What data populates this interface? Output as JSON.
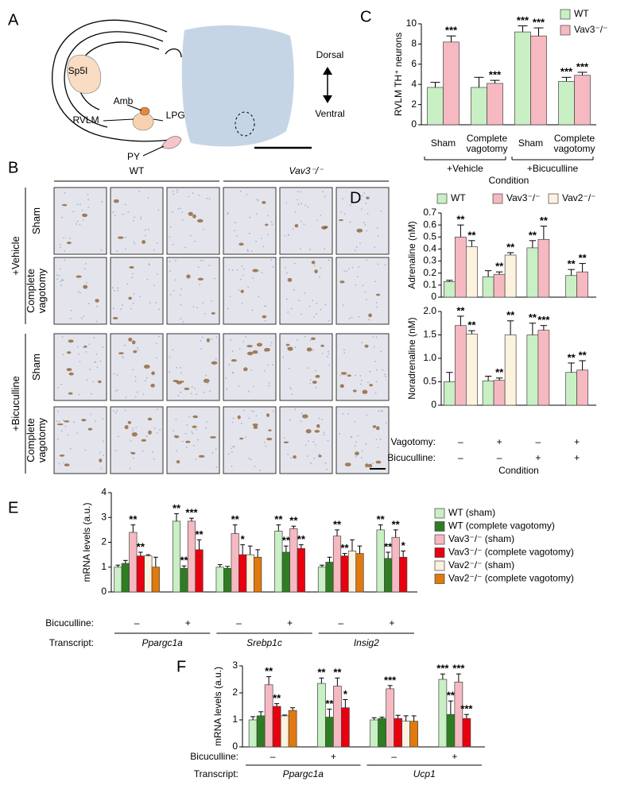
{
  "panel_a": {
    "letter": "A",
    "regions": [
      "Sp5I",
      "Amb",
      "RVLM",
      "LPGi",
      "PY"
    ],
    "orientation": [
      "Dorsal",
      "Ventral"
    ]
  },
  "panel_b": {
    "letter": "B",
    "genotypes": [
      "WT",
      "Vav3⁻/⁻"
    ],
    "treatments": [
      "+Vehicle",
      "+Bicuculline"
    ],
    "rows": [
      "Sham",
      "Complete vagotomy",
      "Sham",
      "Complete vagotomy"
    ]
  },
  "chart_data": [
    {
      "type": "bar",
      "letter": "C",
      "ylabel": "RVLM TH⁺ neurons",
      "xlabel": "Condition",
      "categories": [
        "Sham",
        "Complete vagotomy",
        "Sham",
        "Complete vagotomy"
      ],
      "groups": [
        "+Vehicle",
        "+Bicuculline"
      ],
      "ylim": [
        0,
        10
      ],
      "yticks": [
        0,
        2,
        4,
        6,
        8,
        10
      ],
      "legend": "upper right",
      "series": [
        {
          "name": "WT",
          "color": "#c9efc4",
          "values": [
            3.7,
            3.7,
            9.2,
            4.3
          ],
          "errors": [
            0.5,
            1.0,
            0.6,
            0.4
          ],
          "stars": [
            null,
            null,
            "***",
            "***"
          ],
          "star_colors": [
            null,
            null,
            "#000000",
            "#3f8f1f"
          ]
        },
        {
          "name": "Vav3⁻/⁻",
          "color": "#f6b9c1",
          "values": [
            8.2,
            4.1,
            8.8,
            4.9
          ],
          "errors": [
            0.6,
            0.3,
            0.8,
            0.3
          ],
          "stars": [
            "***",
            "***",
            "***",
            "***"
          ],
          "star_colors": [
            "#000000",
            "#e00000",
            "#000000",
            "#e00000"
          ]
        }
      ]
    },
    {
      "type": "bar",
      "letter": "D",
      "ylabel": "Adrenaline (nM)",
      "ylim": [
        0,
        0.7
      ],
      "yticks": [
        0,
        0.1,
        0.2,
        0.3,
        0.4,
        0.5,
        0.6,
        0.7
      ],
      "legend": "top",
      "series": [
        {
          "name": "WT",
          "color": "#c9efc4",
          "values": [
            0.13,
            0.17,
            0.41,
            0.18
          ],
          "errors": [
            0.01,
            0.05,
            0.06,
            0.05
          ],
          "stars": [
            null,
            null,
            "**",
            "**"
          ],
          "star_colors": [
            null,
            null,
            "#000000",
            "#3f8f1f"
          ]
        },
        {
          "name": "Vav3⁻/⁻",
          "color": "#f6b9c1",
          "values": [
            0.5,
            0.19,
            0.48,
            0.21
          ],
          "errors": [
            0.1,
            0.02,
            0.11,
            0.07
          ],
          "stars": [
            "**",
            "**",
            "**",
            "**"
          ],
          "star_colors": [
            "#000000",
            "#e00000",
            "#000000",
            "#e00000"
          ]
        },
        {
          "name": "Vav2⁻/⁻",
          "color": "#fdf2dd",
          "values": [
            0.42,
            0.35,
            null,
            null
          ],
          "errors": [
            0.05,
            0.02,
            null,
            null
          ],
          "stars": [
            "**",
            "**",
            null,
            null
          ],
          "star_colors": [
            "#000000",
            "#000000",
            null,
            null
          ]
        }
      ]
    },
    {
      "type": "bar",
      "ylabel": "Noradrenaline (nM)",
      "xlabel": "Condition",
      "ylim": [
        0,
        2
      ],
      "yticks": [
        0,
        0.5,
        {
          "value": 1,
          "label": "1.0"
        },
        1.5,
        {
          "value": 2,
          "label": "2.0"
        }
      ],
      "xrows": [
        {
          "label": "Vagotomy:",
          "values": [
            "–",
            "+",
            "–",
            "+"
          ]
        },
        {
          "label": "Bicuculline:",
          "values": [
            "–",
            "–",
            "+",
            "+"
          ]
        }
      ],
      "series": [
        {
          "color": "#c9efc4",
          "values": [
            0.5,
            0.52,
            1.5,
            0.7
          ],
          "errors": [
            0.2,
            0.1,
            0.25,
            0.2
          ],
          "stars": [
            null,
            null,
            "**",
            "**"
          ],
          "star_colors": [
            null,
            null,
            "#000000",
            "#3f8f1f"
          ]
        },
        {
          "color": "#f6b9c1",
          "values": [
            1.7,
            0.53,
            1.6,
            0.75
          ],
          "errors": [
            0.2,
            0.05,
            0.1,
            0.2
          ],
          "stars": [
            "**",
            "**",
            "***",
            "**"
          ],
          "star_colors": [
            "#000000",
            "#e00000",
            "#000000",
            "#e00000"
          ]
        },
        {
          "color": "#fdf2dd",
          "values": [
            1.52,
            1.5,
            null,
            null
          ],
          "errors": [
            0.07,
            0.3,
            null,
            null
          ],
          "stars": [
            "**",
            "**",
            null,
            null
          ],
          "star_colors": [
            "#000000",
            "#000000",
            null,
            null
          ]
        }
      ]
    },
    {
      "type": "bar",
      "letter": "E",
      "ylabel": "mRNA levels (a.u.)",
      "ylim": [
        0,
        4
      ],
      "yticks": [
        0,
        1,
        2,
        3,
        4
      ],
      "legend": "right",
      "xrows": [
        {
          "label": "Bicuculline:",
          "values": [
            "–",
            "+",
            "–",
            "+",
            "–",
            "+"
          ]
        }
      ],
      "transcripts": {
        "label": "Transcript:",
        "names": [
          "Ppargc1a",
          "Srebp1c",
          "Insig2"
        ]
      },
      "series": [
        {
          "name": "WT (sham)",
          "color": "#c9efc4",
          "values": [
            1.0,
            2.85,
            1.0,
            2.45,
            1.0,
            2.5
          ],
          "errors": [
            0.08,
            0.3,
            0.1,
            0.25,
            0.08,
            0.2
          ],
          "stars": [
            null,
            "**",
            null,
            "**",
            null,
            "**"
          ],
          "star_colors": [
            null,
            "#000000",
            null,
            "#000000",
            null,
            "#000000"
          ]
        },
        {
          "name": "WT (complete vagotomy)",
          "color": "#2f7d22",
          "values": [
            1.15,
            0.95,
            0.95,
            1.6,
            1.2,
            1.35
          ],
          "errors": [
            0.12,
            0.1,
            0.08,
            0.25,
            0.2,
            0.25
          ],
          "stars": [
            null,
            "**",
            null,
            "**",
            null,
            "**"
          ],
          "star_colors": [
            null,
            "#3f8f1f",
            null,
            "#3f8f1f",
            null,
            "#3f8f1f"
          ]
        },
        {
          "name": "Vav3⁻/⁻ (sham)",
          "color": "#f6b9c1",
          "values": [
            2.4,
            2.85,
            2.35,
            2.55,
            2.25,
            2.2
          ],
          "errors": [
            0.3,
            0.12,
            0.35,
            0.1,
            0.25,
            0.3
          ],
          "stars": [
            "**",
            "***",
            "**",
            "**",
            "**",
            "**"
          ],
          "star_colors": [
            "#000000",
            "#000000",
            "#000000",
            "#000000",
            "#000000",
            "#000000"
          ]
        },
        {
          "name": "Vav3⁻/⁻ (complete vagotomy)",
          "color": "#e8000e",
          "values": [
            1.45,
            1.7,
            1.5,
            1.75,
            1.45,
            1.4
          ],
          "errors": [
            0.15,
            0.4,
            0.4,
            0.15,
            0.1,
            0.25
          ],
          "stars": [
            "**",
            "**",
            "*",
            "**",
            "**",
            "*"
          ],
          "star_colors": [
            "#e00000",
            "#e00000",
            "#e00000",
            "#e00000",
            "#e00000",
            "#e00000"
          ]
        },
        {
          "name": "Vav2⁻/⁻ (sham)",
          "color": "#fdf2dd",
          "values": [
            1.45,
            null,
            1.5,
            null,
            1.65,
            null
          ],
          "errors": [
            0.05,
            null,
            0.35,
            null,
            0.45,
            null
          ]
        },
        {
          "name": "Vav2⁻/⁻ (complete vagotomy)",
          "color": "#e0790e",
          "values": [
            1.0,
            null,
            1.4,
            null,
            1.55,
            null
          ],
          "errors": [
            0.4,
            null,
            0.3,
            null,
            0.3,
            null
          ]
        }
      ]
    },
    {
      "type": "bar",
      "letter": "F",
      "ylabel": "mRNA levels (a.u.)",
      "ylim": [
        0,
        3
      ],
      "yticks": [
        0,
        1,
        2,
        3
      ],
      "xrows": [
        {
          "label": "Bicuculline:",
          "values": [
            "–",
            "+",
            "–",
            "+"
          ]
        }
      ],
      "transcripts": {
        "label": "Transcript:",
        "names": [
          "Ppargc1a",
          "Ucp1"
        ]
      },
      "series": [
        {
          "color": "#c9efc4",
          "values": [
            1.0,
            2.35,
            1.0,
            2.5
          ],
          "errors": [
            0.12,
            0.2,
            0.08,
            0.2
          ],
          "stars": [
            null,
            "**",
            null,
            "***"
          ],
          "star_colors": [
            null,
            "#000000",
            null,
            "#000000"
          ]
        },
        {
          "color": "#2f7d22",
          "values": [
            1.15,
            1.1,
            1.05,
            1.2
          ],
          "errors": [
            0.15,
            0.3,
            0.05,
            0.5
          ],
          "stars": [
            null,
            "**",
            null,
            "**"
          ],
          "star_colors": [
            null,
            "#3f8f1f",
            null,
            "#3f8f1f"
          ]
        },
        {
          "color": "#f6b9c1",
          "values": [
            2.3,
            2.25,
            2.15,
            2.4
          ],
          "errors": [
            0.3,
            0.3,
            0.12,
            0.3
          ],
          "stars": [
            "**",
            "**",
            "***",
            "***"
          ],
          "star_colors": [
            "#000000",
            "#000000",
            "#000000",
            "#000000"
          ]
        },
        {
          "color": "#e8000e",
          "values": [
            1.5,
            1.45,
            1.05,
            1.05
          ],
          "errors": [
            0.1,
            0.3,
            0.12,
            0.15
          ],
          "stars": [
            "**",
            "*",
            null,
            "***"
          ],
          "star_colors": [
            "#e00000",
            "#e00000",
            null,
            "#e00000"
          ]
        },
        {
          "color": "#fdf2dd",
          "values": [
            1.15,
            null,
            0.95,
            null
          ],
          "errors": [
            0.03,
            null,
            0.2,
            null
          ]
        },
        {
          "color": "#e0790e",
          "values": [
            1.35,
            null,
            0.95,
            null
          ],
          "errors": [
            0.1,
            null,
            0.2,
            null
          ]
        }
      ]
    }
  ]
}
